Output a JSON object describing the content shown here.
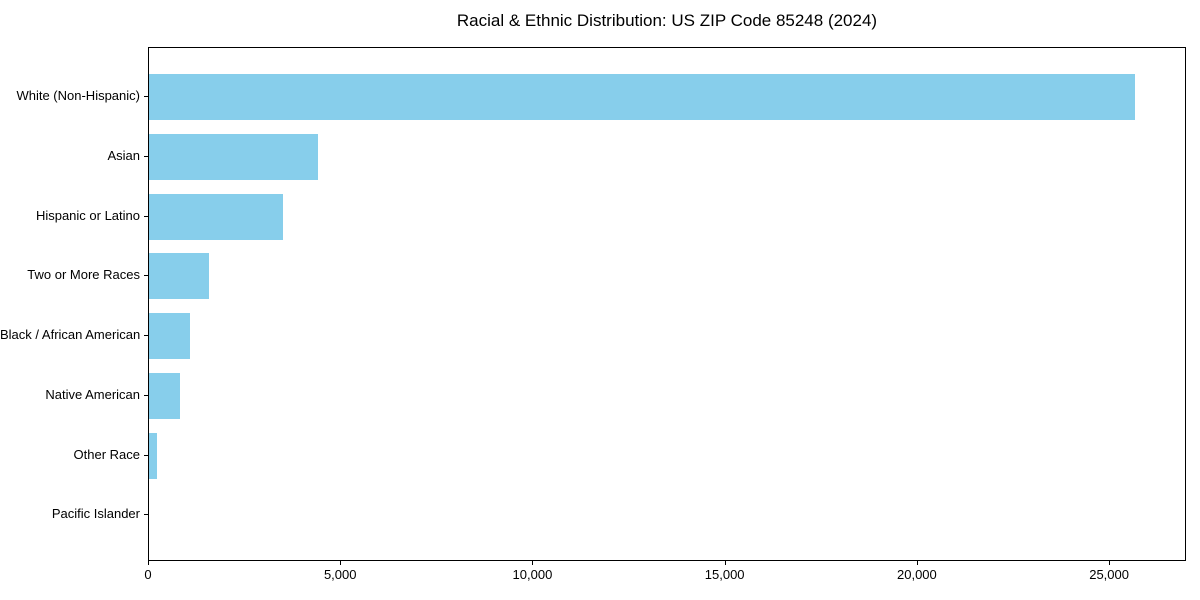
{
  "chart_data": {
    "type": "bar",
    "orientation": "horizontal",
    "title": "Racial & Ethnic Distribution: US ZIP Code 85248 (2024)",
    "categories": [
      "White (Non-Hispanic)",
      "Asian",
      "Hispanic or Latino",
      "Two or More Races",
      "Black / African American",
      "Native American",
      "Other Race",
      "Pacific Islander"
    ],
    "values": [
      25650,
      4400,
      3490,
      1550,
      1060,
      800,
      220,
      0
    ],
    "xlabel": "",
    "ylabel": "",
    "xlim": [
      0,
      27000
    ],
    "x_ticks": [
      0,
      5000,
      10000,
      15000,
      20000,
      25000
    ],
    "x_tick_labels": [
      "0",
      "5,000",
      "10,000",
      "15,000",
      "20,000",
      "25,000"
    ],
    "bar_color": "#87CEEB",
    "background_color": "#ffffff",
    "spine_color": "#000000",
    "grid": false,
    "legend": null
  }
}
